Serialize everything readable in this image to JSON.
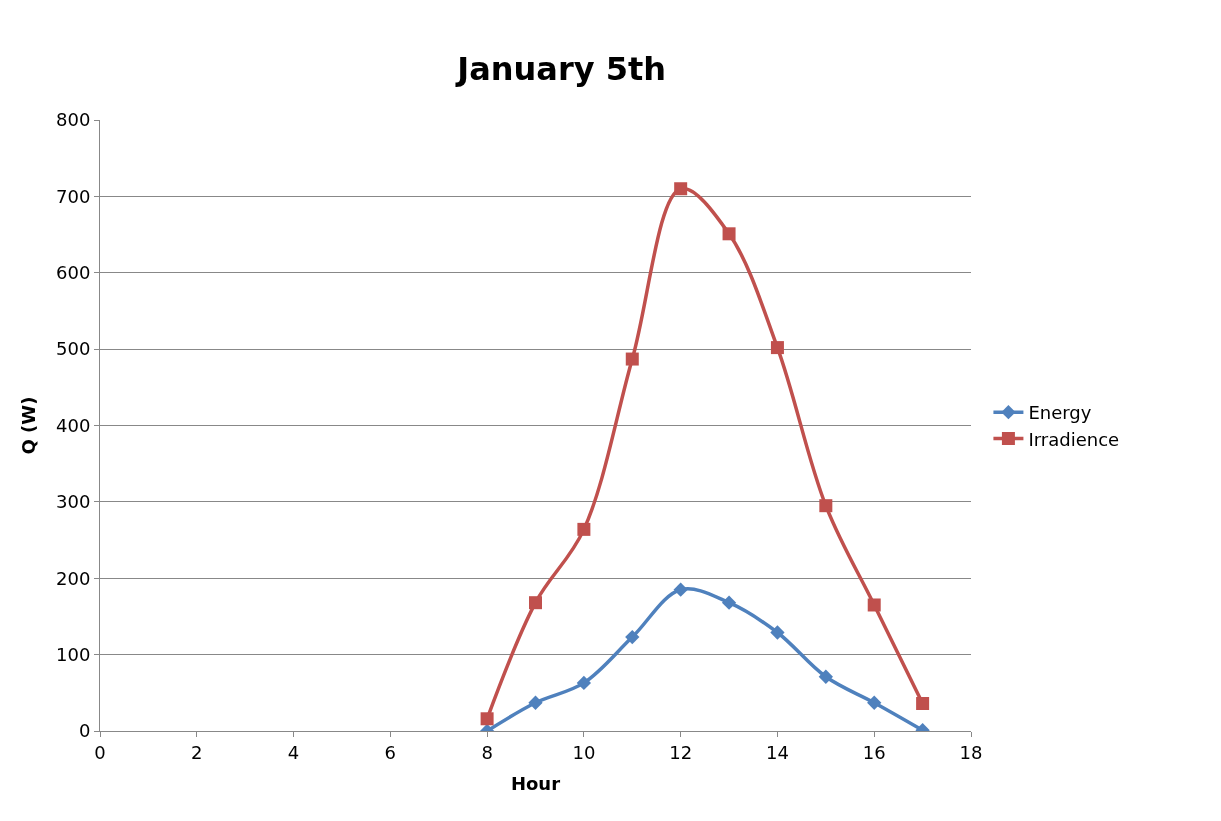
{
  "chart_data": {
    "type": "line",
    "title": "January 5th",
    "xlabel": "Hour",
    "ylabel": "Q (W)",
    "x": [
      8,
      9,
      10,
      11,
      12,
      13,
      14,
      15,
      16,
      17
    ],
    "series": [
      {
        "name": "Energy",
        "color": "#4f81bd",
        "marker": "diamond",
        "values": [
          0,
          37,
          63,
          123,
          185,
          168,
          129,
          71,
          37,
          1
        ]
      },
      {
        "name": "Irradience",
        "color": "#c0504d",
        "marker": "square",
        "values": [
          16,
          168,
          264,
          487,
          710,
          651,
          502,
          295,
          165,
          36
        ]
      }
    ],
    "xlim": [
      0,
      18
    ],
    "xticks": [
      0,
      2,
      4,
      6,
      8,
      10,
      12,
      14,
      16,
      18
    ],
    "ylim": [
      0,
      800
    ],
    "yticks": [
      0,
      100,
      200,
      300,
      400,
      500,
      600,
      700,
      800
    ],
    "grid": "y",
    "legend": "right",
    "line_style": "solid"
  }
}
